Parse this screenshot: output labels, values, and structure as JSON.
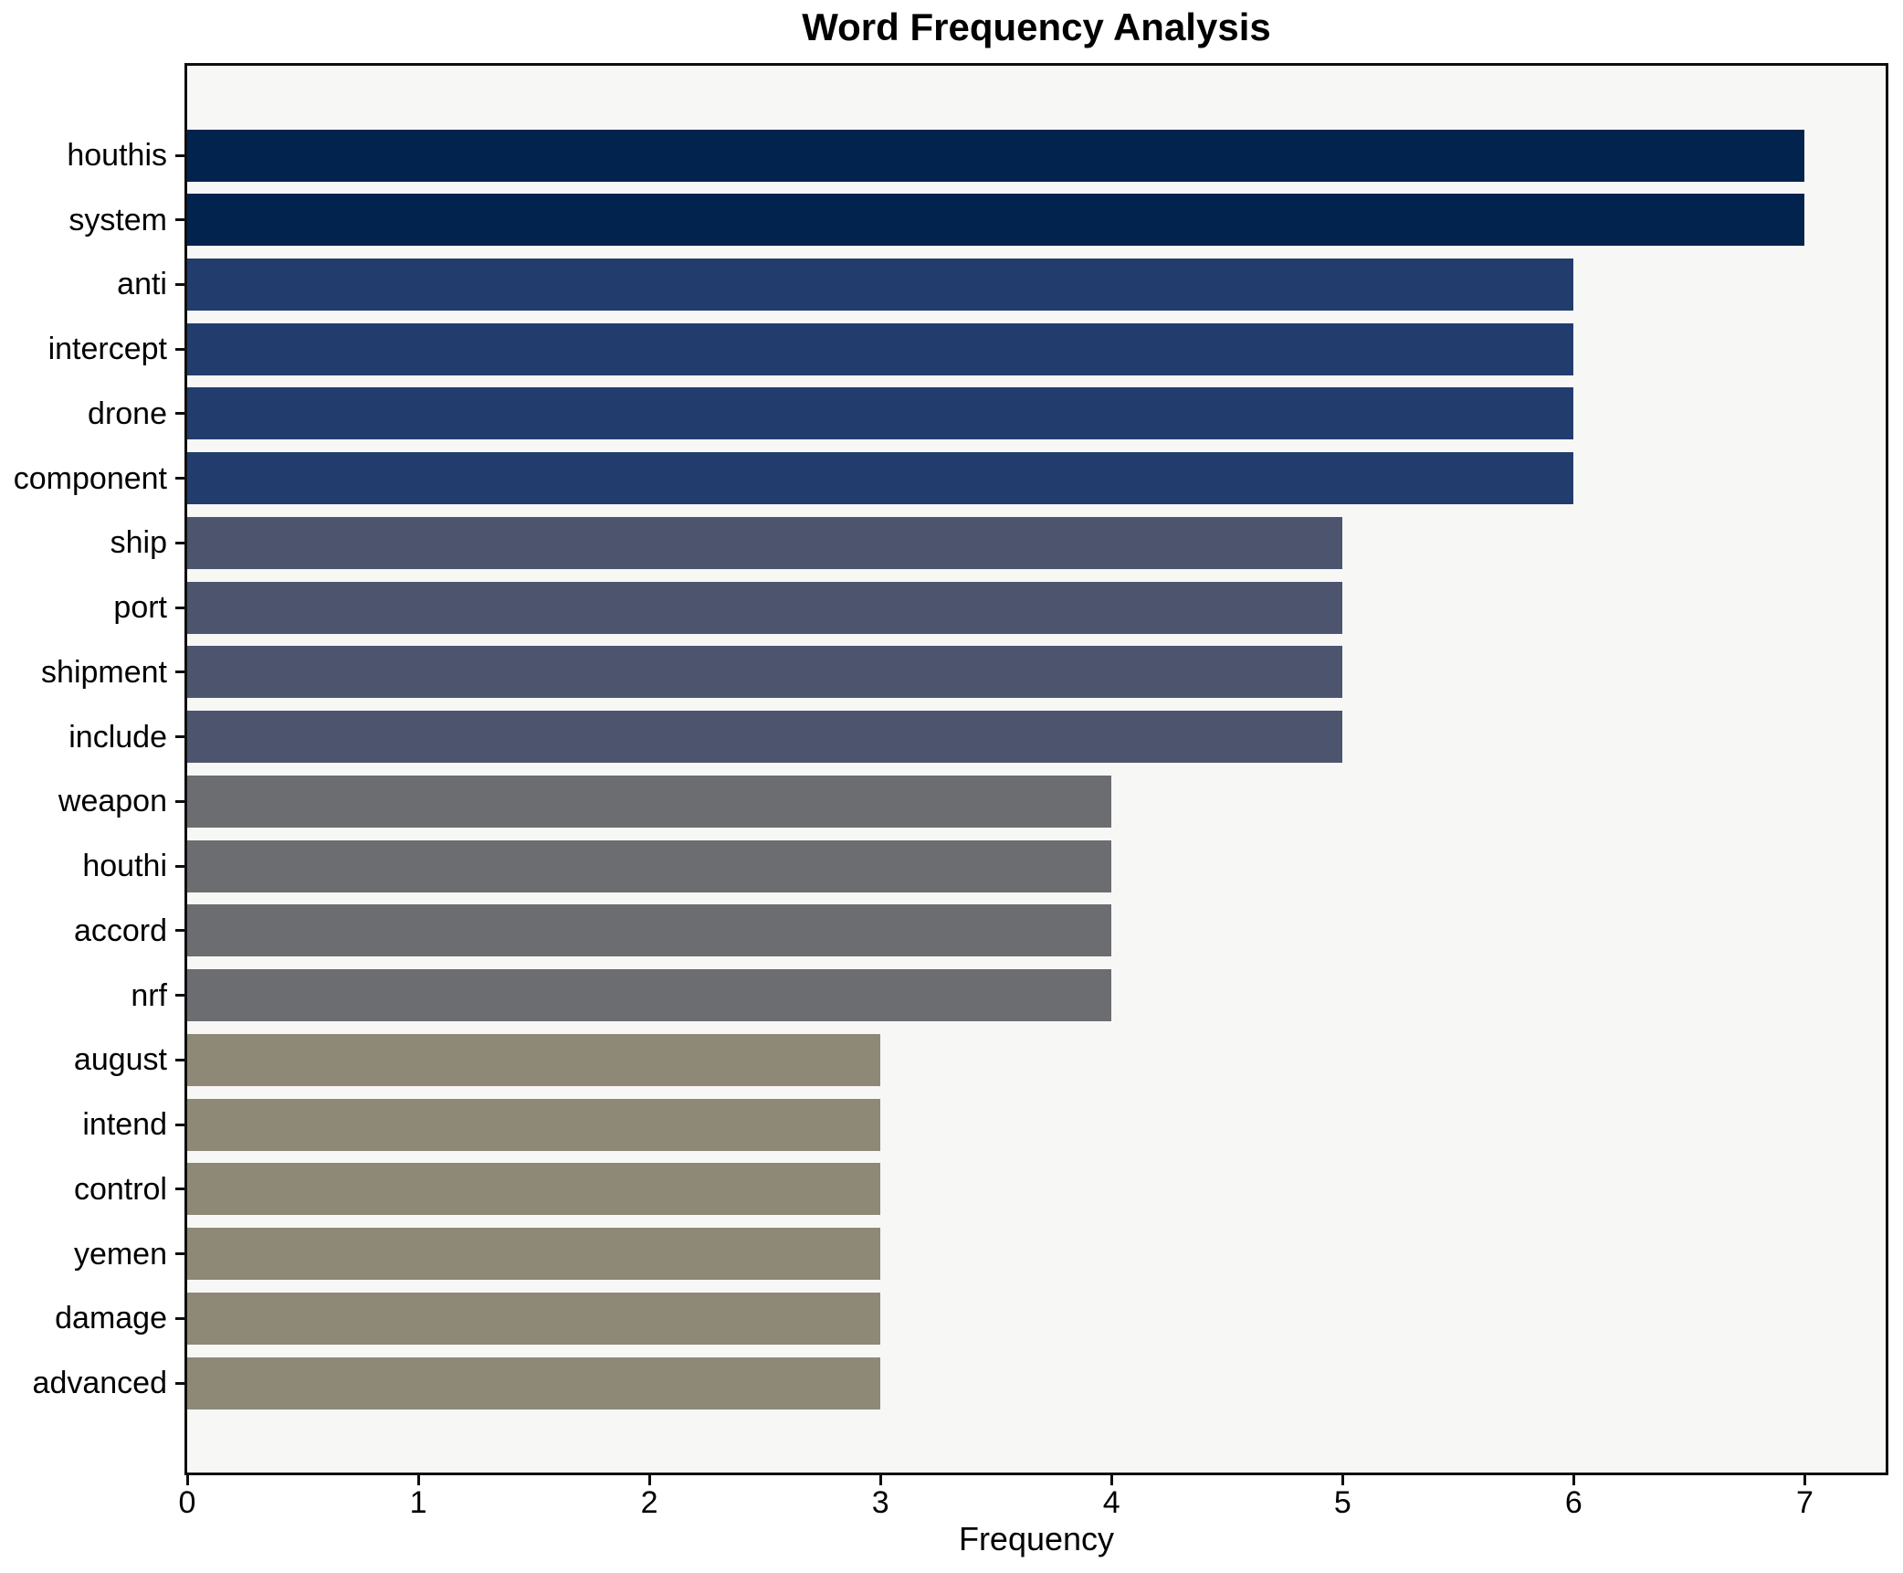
{
  "chart_data": {
    "type": "bar",
    "orientation": "horizontal",
    "title": "Word Frequency Analysis",
    "xlabel": "Frequency",
    "ylabel": "",
    "categories": [
      "houthis",
      "system",
      "anti",
      "intercept",
      "drone",
      "component",
      "ship",
      "port",
      "shipment",
      "include",
      "weapon",
      "houthi",
      "accord",
      "nrf",
      "august",
      "intend",
      "control",
      "yemen",
      "damage",
      "advanced"
    ],
    "values": [
      7,
      7,
      6,
      6,
      6,
      6,
      5,
      5,
      5,
      5,
      4,
      4,
      4,
      4,
      3,
      3,
      3,
      3,
      3,
      3
    ],
    "bar_colors": [
      "#02234e",
      "#02234e",
      "#223d6d",
      "#223d6d",
      "#223d6d",
      "#223d6d",
      "#4d556e",
      "#4d556e",
      "#4d556e",
      "#4d556e",
      "#6c6d70",
      "#6c6d70",
      "#6c6d70",
      "#6c6d70",
      "#8e8877",
      "#8e8877",
      "#8e8877",
      "#8e8877",
      "#8e8877",
      "#8e8877"
    ],
    "x_ticks": [
      0,
      1,
      2,
      3,
      4,
      5,
      6,
      7
    ],
    "xlim": [
      0,
      7.35
    ],
    "grid": false,
    "legend": false,
    "plot_background": "#f7f7f6",
    "figure_background": "#ffffff",
    "spine_color": "#0f0f0f",
    "tick_color": "#0f0f0f",
    "text_color": "#000000"
  }
}
